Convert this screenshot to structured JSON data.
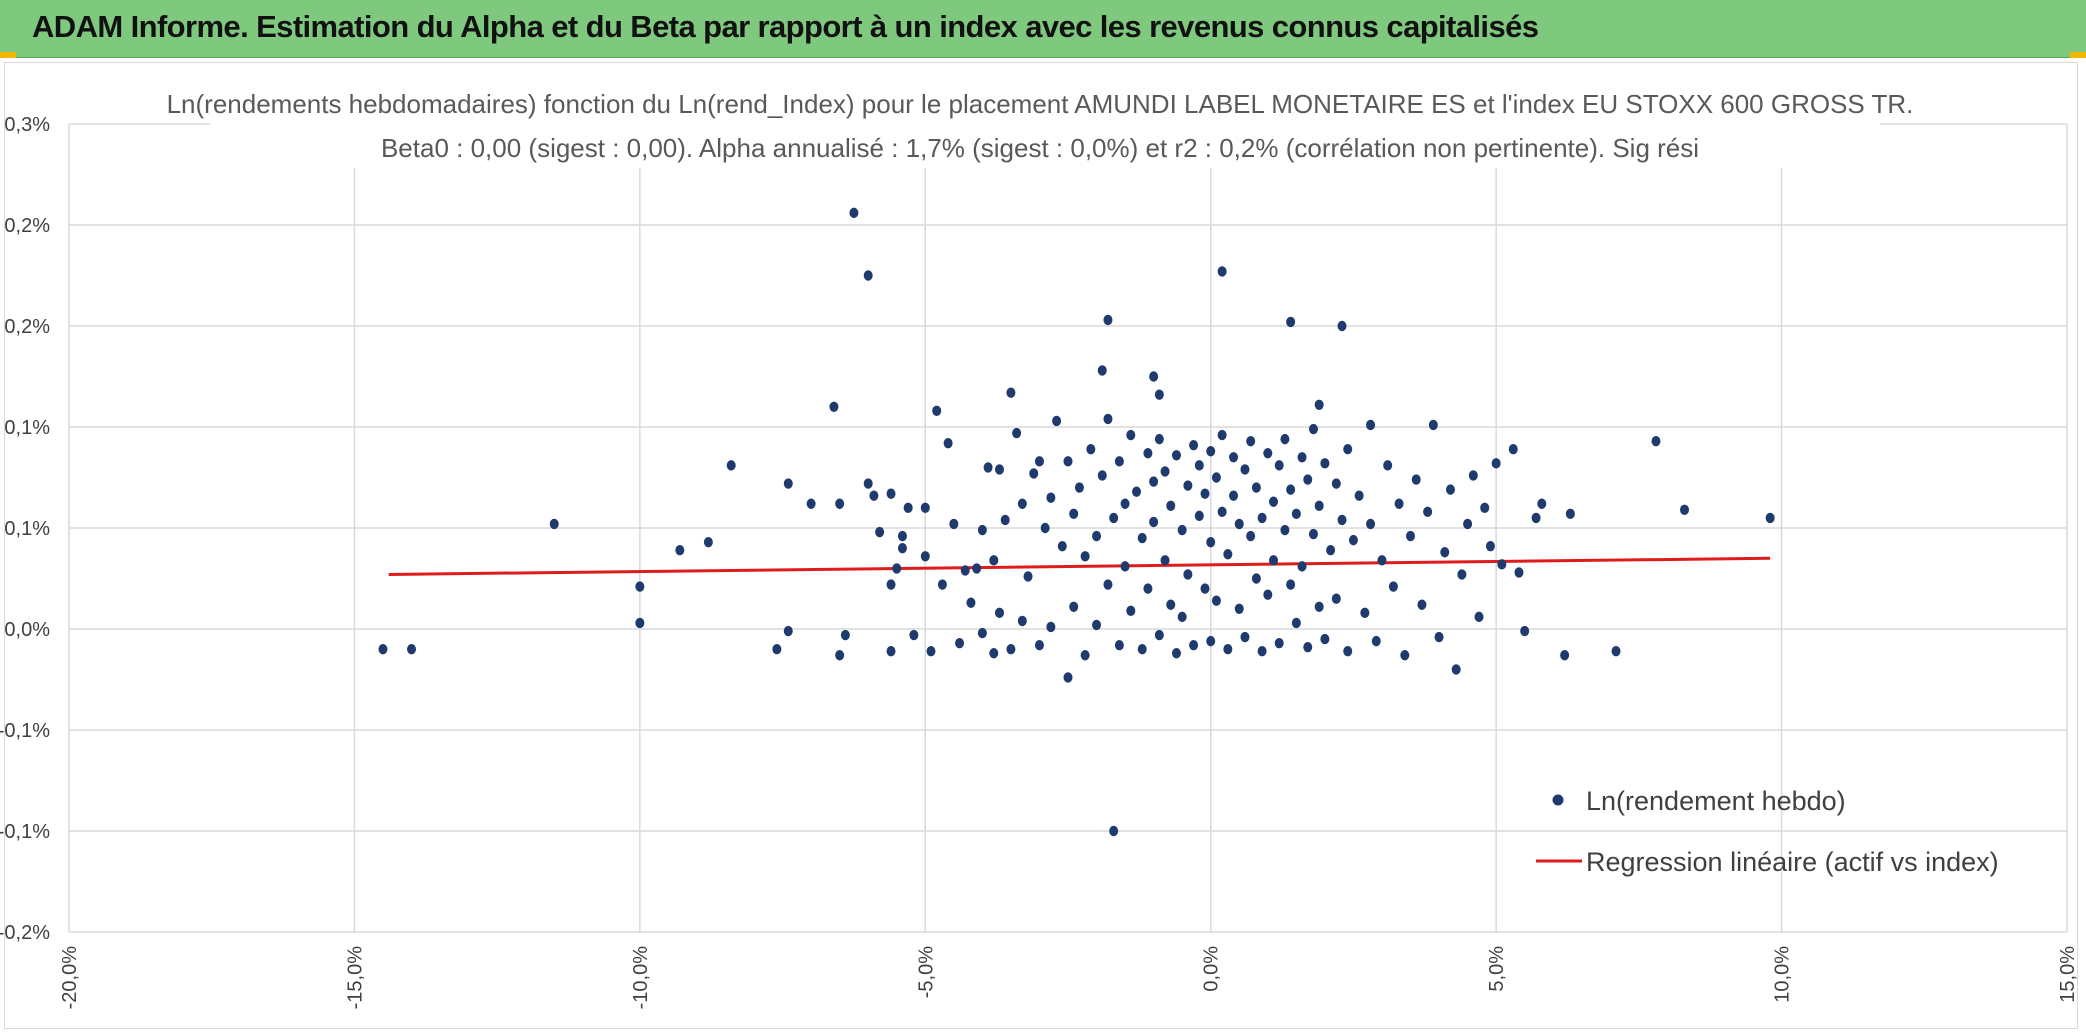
{
  "banner": {
    "title": "ADAM Informe. Estimation du Alpha et du Beta par rapport à un index avec les revenus connus capitalisés"
  },
  "colors": {
    "banner": "#7fc97f",
    "points": "#1f3b6e",
    "regression": "#e01b1b",
    "grid": "#d9d9d9"
  },
  "chart_data": {
    "type": "scatter",
    "title_lines": [
      "Ln(rendements hebdomadaires) fonction du Ln(rend_Index) pour le placement AMUNDI LABEL MONETAIRE ES et l'index EU STOXX 600 GROSS TR.",
      "Beta0 : 0,00 (sigest : 0,00). Alpha annualisé : 1,7% (sigest : 0,0%) et r2 : 0,2% (corrélation non pertinente). Sig rési"
    ],
    "xlabel": "",
    "ylabel": "",
    "xlim": [
      -0.2,
      0.15
    ],
    "ylim": [
      -0.0015,
      0.0025
    ],
    "x_ticks": [
      -0.2,
      -0.15,
      -0.1,
      -0.05,
      0.0,
      0.05,
      0.1,
      0.15
    ],
    "x_tick_labels": [
      "-20,0%",
      "-15,0%",
      "-10,0%",
      "-5,0%",
      "0,0%",
      "5,0%",
      "10,0%",
      "15,0%"
    ],
    "y_ticks": [
      0.0025,
      0.002,
      0.0015,
      0.001,
      0.0005,
      0.0,
      -0.0005,
      -0.001,
      -0.0015
    ],
    "y_tick_labels": [
      "0,3%",
      "0,2%",
      "0,2%",
      "0,1%",
      "0,1%",
      "0,0%",
      "-0,1%",
      "-0,1%",
      "-0,2%"
    ],
    "grid": true,
    "legend_position": "right",
    "series": [
      {
        "name": "Ln(rendement hebdo)",
        "type": "scatter",
        "points_note_free": true,
        "points": [
          [
            -0.145,
            -0.0001
          ],
          [
            -0.14,
            -0.0001
          ],
          [
            -0.115,
            0.00052
          ],
          [
            -0.1,
            0.00021
          ],
          [
            -0.1,
            3e-05
          ],
          [
            -0.093,
            0.00039
          ],
          [
            -0.088,
            0.00043
          ],
          [
            -0.084,
            0.00081
          ],
          [
            -0.076,
            -0.0001
          ],
          [
            -0.074,
            0.00072
          ],
          [
            -0.074,
            -1e-05
          ],
          [
            -0.07,
            0.00062
          ],
          [
            -0.066,
            0.0011
          ],
          [
            -0.065,
            0.00062
          ],
          [
            -0.065,
            -0.00013
          ],
          [
            -0.064,
            -3e-05
          ],
          [
            -0.0625,
            0.00206
          ],
          [
            -0.06,
            0.00175
          ],
          [
            -0.06,
            0.00072
          ],
          [
            -0.059,
            0.00066
          ],
          [
            -0.058,
            0.00048
          ],
          [
            -0.056,
            0.00067
          ],
          [
            -0.056,
            0.00022
          ],
          [
            -0.056,
            -0.00011
          ],
          [
            -0.055,
            0.0003
          ],
          [
            -0.054,
            0.00046
          ],
          [
            -0.054,
            0.0004
          ],
          [
            -0.053,
            0.0006
          ],
          [
            -0.052,
            -3e-05
          ],
          [
            -0.05,
            0.0006
          ],
          [
            -0.05,
            0.00036
          ],
          [
            -0.049,
            -0.00011
          ],
          [
            -0.048,
            0.00108
          ],
          [
            -0.047,
            0.00022
          ],
          [
            -0.046,
            0.00092
          ],
          [
            -0.045,
            0.00052
          ],
          [
            -0.044,
            -7e-05
          ],
          [
            -0.043,
            0.00029
          ],
          [
            -0.042,
            0.00013
          ],
          [
            -0.041,
            0.0003
          ],
          [
            -0.04,
            -2e-05
          ],
          [
            -0.04,
            0.00049
          ],
          [
            -0.039,
            0.0008
          ],
          [
            -0.038,
            -0.00012
          ],
          [
            -0.038,
            0.00034
          ],
          [
            -0.037,
            0.00079
          ],
          [
            -0.037,
            8e-05
          ],
          [
            -0.036,
            0.00054
          ],
          [
            -0.035,
            0.00117
          ],
          [
            -0.035,
            -0.0001
          ],
          [
            -0.034,
            0.00097
          ],
          [
            -0.033,
            4e-05
          ],
          [
            -0.033,
            0.00062
          ],
          [
            -0.032,
            0.00026
          ],
          [
            -0.031,
            0.00077
          ],
          [
            -0.03,
            0.00083
          ],
          [
            -0.03,
            -8e-05
          ],
          [
            -0.029,
            0.0005
          ],
          [
            -0.028,
            1e-05
          ],
          [
            -0.028,
            0.00065
          ],
          [
            -0.027,
            0.00103
          ],
          [
            -0.026,
            0.00041
          ],
          [
            -0.025,
            0.00083
          ],
          [
            -0.025,
            -0.00024
          ],
          [
            -0.024,
            0.00057
          ],
          [
            -0.024,
            0.00011
          ],
          [
            -0.023,
            0.0007
          ],
          [
            -0.022,
            0.00036
          ],
          [
            -0.022,
            -0.00013
          ],
          [
            -0.021,
            0.00089
          ],
          [
            -0.02,
            0.00046
          ],
          [
            -0.02,
            2e-05
          ],
          [
            -0.019,
            0.00076
          ],
          [
            -0.018,
            0.00104
          ],
          [
            -0.018,
            0.00022
          ],
          [
            -0.017,
            0.00055
          ],
          [
            -0.016,
            0.00083
          ],
          [
            -0.016,
            -8e-05
          ],
          [
            -0.015,
            0.00062
          ],
          [
            -0.015,
            0.00031
          ],
          [
            -0.014,
            0.00096
          ],
          [
            -0.014,
            9e-05
          ],
          [
            -0.013,
            0.00068
          ],
          [
            -0.012,
            0.00045
          ],
          [
            -0.012,
            -0.0001
          ],
          [
            -0.011,
            0.00087
          ],
          [
            -0.011,
            0.0002
          ],
          [
            -0.01,
            0.00073
          ],
          [
            -0.01,
            0.00053
          ],
          [
            -0.009,
            -3e-05
          ],
          [
            -0.009,
            0.00094
          ],
          [
            -0.008,
            0.00034
          ],
          [
            -0.008,
            0.00078
          ],
          [
            -0.007,
            0.00012
          ],
          [
            -0.007,
            0.00061
          ],
          [
            -0.006,
            -0.00012
          ],
          [
            -0.006,
            0.00086
          ],
          [
            -0.005,
            0.00049
          ],
          [
            -0.005,
            6e-05
          ],
          [
            -0.004,
            0.00071
          ],
          [
            -0.004,
            0.00027
          ],
          [
            -0.003,
            0.00091
          ],
          [
            -0.003,
            -8e-05
          ],
          [
            -0.002,
            0.00056
          ],
          [
            -0.002,
            0.00081
          ],
          [
            -0.001,
            0.0002
          ],
          [
            -0.001,
            0.00067
          ],
          [
            0.0,
            -6e-05
          ],
          [
            0.0,
            0.00088
          ],
          [
            0.0,
            0.00043
          ],
          [
            0.001,
            0.00075
          ],
          [
            0.001,
            0.00014
          ],
          [
            0.002,
            0.00058
          ],
          [
            0.002,
            0.00096
          ],
          [
            0.003,
            -0.0001
          ],
          [
            0.003,
            0.00037
          ],
          [
            0.004,
            0.00066
          ],
          [
            0.004,
            0.00085
          ],
          [
            0.005,
            0.0001
          ],
          [
            0.005,
            0.00052
          ],
          [
            0.006,
            0.00079
          ],
          [
            0.006,
            -4e-05
          ],
          [
            0.007,
            0.00046
          ],
          [
            0.007,
            0.00093
          ],
          [
            0.008,
            0.00025
          ],
          [
            0.008,
            0.0007
          ],
          [
            0.009,
            -0.00011
          ],
          [
            0.009,
            0.00055
          ],
          [
            0.01,
            0.00087
          ],
          [
            0.01,
            0.00017
          ],
          [
            0.011,
            0.00063
          ],
          [
            0.011,
            0.00034
          ],
          [
            0.012,
            0.00081
          ],
          [
            0.012,
            -7e-05
          ],
          [
            0.013,
            0.00049
          ],
          [
            0.013,
            0.00094
          ],
          [
            0.014,
            0.00022
          ],
          [
            0.014,
            0.00069
          ],
          [
            0.015,
            3e-05
          ],
          [
            0.015,
            0.00057
          ],
          [
            0.016,
            0.00085
          ],
          [
            0.016,
            0.00031
          ],
          [
            0.017,
            -9e-05
          ],
          [
            0.017,
            0.00074
          ],
          [
            0.018,
            0.00047
          ],
          [
            0.018,
            0.00099
          ],
          [
            0.019,
            0.00011
          ],
          [
            0.019,
            0.00061
          ],
          [
            0.02,
            0.00082
          ],
          [
            0.02,
            -5e-05
          ],
          [
            0.021,
            0.00039
          ],
          [
            0.022,
            0.00072
          ],
          [
            0.022,
            0.00015
          ],
          [
            0.023,
            0.00054
          ],
          [
            0.024,
            0.00089
          ],
          [
            0.024,
            -0.00011
          ],
          [
            0.025,
            0.00044
          ],
          [
            0.026,
            0.00066
          ],
          [
            0.027,
            8e-05
          ],
          [
            0.028,
            0.00101
          ],
          [
            0.028,
            0.00052
          ],
          [
            0.029,
            -6e-05
          ],
          [
            0.03,
            0.00034
          ],
          [
            0.031,
            0.00081
          ],
          [
            0.032,
            0.00021
          ],
          [
            0.033,
            0.00062
          ],
          [
            0.034,
            -0.00013
          ],
          [
            0.035,
            0.00046
          ],
          [
            0.036,
            0.00074
          ],
          [
            0.037,
            0.00012
          ],
          [
            0.038,
            0.00058
          ],
          [
            0.039,
            0.00101
          ],
          [
            0.04,
            -4e-05
          ],
          [
            0.041,
            0.00038
          ],
          [
            0.042,
            0.00069
          ],
          [
            0.043,
            -0.0002
          ],
          [
            0.044,
            0.00027
          ],
          [
            0.045,
            0.00052
          ],
          [
            0.046,
            0.00076
          ],
          [
            0.047,
            6e-05
          ],
          [
            0.048,
            0.0006
          ],
          [
            0.049,
            0.00041
          ],
          [
            0.05,
            0.00082
          ],
          [
            0.051,
            0.00032
          ],
          [
            0.053,
            0.00089
          ],
          [
            0.054,
            0.00028
          ],
          [
            0.055,
            -1e-05
          ],
          [
            0.057,
            0.00055
          ],
          [
            0.058,
            0.00062
          ],
          [
            0.062,
            -0.00013
          ],
          [
            0.063,
            0.00057
          ],
          [
            0.071,
            -0.00011
          ],
          [
            0.078,
            0.00093
          ],
          [
            0.083,
            0.00059
          ],
          [
            0.098,
            0.00055
          ],
          [
            -0.017,
            -0.001
          ],
          [
            0.002,
            0.00177
          ],
          [
            0.014,
            0.00152
          ],
          [
            0.023,
            0.0015
          ],
          [
            -0.018,
            0.00153
          ],
          [
            -0.019,
            0.00128
          ],
          [
            -0.01,
            0.00125
          ],
          [
            -0.009,
            0.00116
          ],
          [
            0.019,
            0.00111
          ]
        ]
      },
      {
        "name": "Regression linéaire (actif vs index)",
        "type": "line",
        "points": [
          [
            -0.144,
            0.00027
          ],
          [
            0.098,
            0.00035
          ]
        ]
      }
    ]
  }
}
